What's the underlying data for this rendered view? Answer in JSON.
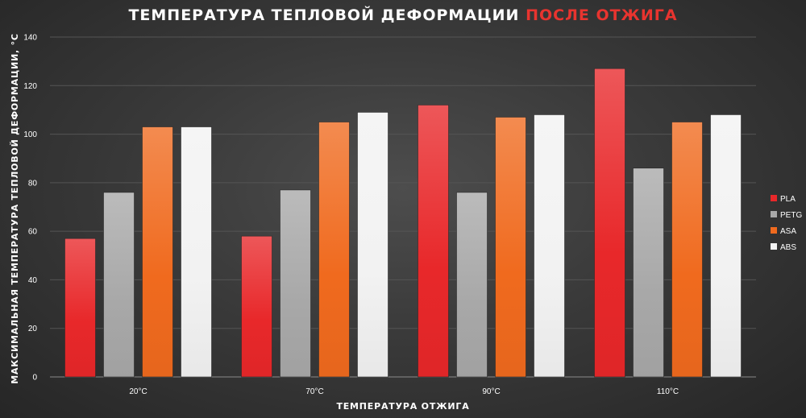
{
  "title_main": "ТЕМПЕРАТУРА ТЕПЛОВОЙ ДЕФОРМАЦИИ",
  "title_accent": "ПОСЛЕ ОТЖИГА",
  "chart_data": {
    "type": "bar",
    "title": "ТЕМПЕРАТУРА ТЕПЛОВОЙ ДЕФОРМАЦИИ ПОСЛЕ ОТЖИГА",
    "xlabel": "ТЕМПЕРАТУРА ОТЖИГА",
    "ylabel": "МАКСИМАЛЬНАЯ ТЕМПЕРАТУРА ТЕПЛОВОЙ ДЕФОРМАЦИИ, °С",
    "categories": [
      "20°C",
      "70°C",
      "90°C",
      "110°C"
    ],
    "ylim": [
      0,
      140
    ],
    "yticks": [
      0,
      20,
      40,
      60,
      80,
      100,
      120,
      140
    ],
    "grid": true,
    "legend_position": "right",
    "series": [
      {
        "name": "PLA",
        "color": "#e8282a",
        "values": [
          57,
          58,
          112,
          127
        ]
      },
      {
        "name": "PETG",
        "color": "#a8a8a8",
        "values": [
          76,
          77,
          76,
          86
        ]
      },
      {
        "name": "ASA",
        "color": "#f06a1e",
        "values": [
          103,
          105,
          107,
          105
        ]
      },
      {
        "name": "ABS",
        "color": "#f2f2f2",
        "values": [
          103,
          109,
          108,
          108
        ]
      }
    ]
  }
}
